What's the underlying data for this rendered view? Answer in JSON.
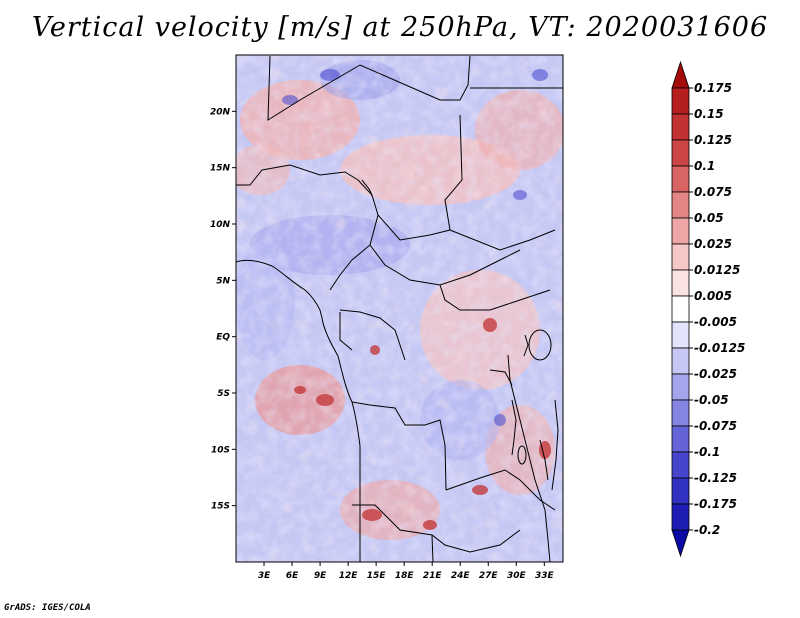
{
  "title": "Vertical velocity [m/s] at 250hPa, VT: 2020031606",
  "credit": "GrADS: IGES/COLA",
  "map": {
    "lat_labels": [
      "20N",
      "15N",
      "10N",
      "5N",
      "EQ",
      "5S",
      "10S",
      "15S"
    ],
    "lat_values": [
      20,
      15,
      10,
      5,
      0,
      -5,
      -10,
      -15
    ],
    "lon_labels": [
      "3E",
      "6E",
      "9E",
      "12E",
      "15E",
      "18E",
      "21E",
      "24E",
      "27E",
      "30E",
      "33E"
    ],
    "lon_values": [
      3,
      6,
      9,
      12,
      15,
      18,
      21,
      24,
      27,
      30,
      33
    ],
    "lat_range": [
      -20,
      25
    ],
    "lon_range": [
      0,
      35
    ],
    "coast_color": "#000000"
  },
  "colorbar": {
    "labels": [
      "0.175",
      "0.15",
      "0.125",
      "0.1",
      "0.075",
      "0.05",
      "0.025",
      "0.0125",
      "0.005",
      "-0.005",
      "-0.0125",
      "-0.025",
      "-0.05",
      "-0.075",
      "-0.1",
      "-0.125",
      "-0.175",
      "-0.2"
    ],
    "colors": [
      "#a50a0a",
      "#b41e1e",
      "#c23232",
      "#cd4646",
      "#d86464",
      "#e48585",
      "#eea5a5",
      "#f5c7c7",
      "#fbe3e3",
      "#ffffff",
      "#e3e3fb",
      "#c7c7f5",
      "#a5a5ee",
      "#8585e4",
      "#6464d8",
      "#4646cd",
      "#3232c2",
      "#1e1eb4",
      "#0a0aa5"
    ]
  }
}
